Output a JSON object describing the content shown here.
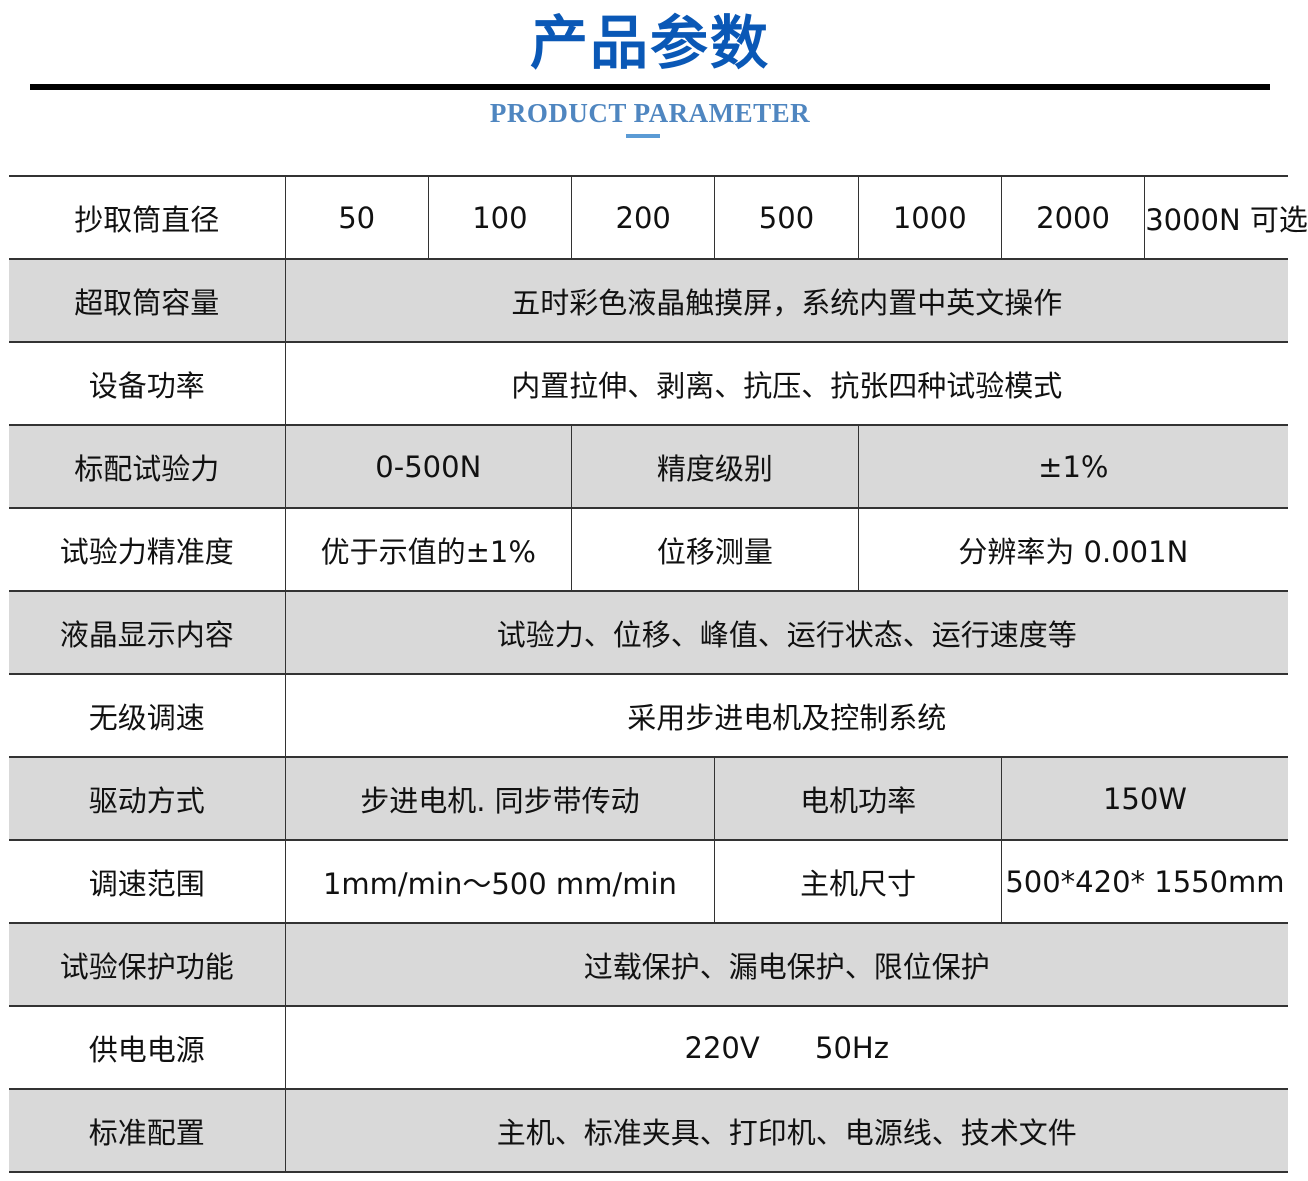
{
  "header": {
    "title": "产品参数",
    "subtitle": "PRODUCT PARAMETER"
  },
  "colors": {
    "title": "#0a58b6",
    "subtitle": "#4f86c0",
    "row_shade": "#d9d9d9"
  },
  "rows": [
    {
      "label": "抄取筒直径",
      "cells": [
        "50",
        "100",
        "200",
        "500",
        "1000",
        "2000",
        "3000N 可选"
      ]
    },
    {
      "label": "超取筒容量",
      "cells": [
        "五时彩色液晶触摸屏，系统内置中英文操作"
      ]
    },
    {
      "label": "设备功率",
      "cells": [
        "内置拉伸、剥离、抗压、抗张四种试验模式"
      ]
    },
    {
      "label": "标配试验力",
      "cells": [
        "0-500N",
        "精度级别",
        "±1%"
      ]
    },
    {
      "label": "试验力精准度",
      "cells": [
        "优于示值的±1%",
        "位移测量",
        "分辨率为 0.001N"
      ]
    },
    {
      "label": "液晶显示内容",
      "cells": [
        "试验力、位移、峰值、运行状态、运行速度等"
      ]
    },
    {
      "label": "无级调速",
      "cells": [
        "采用步进电机及控制系统"
      ]
    },
    {
      "label": "驱动方式",
      "cells": [
        "步进电机. 同步带传动",
        "电机功率",
        "150W"
      ]
    },
    {
      "label": "调速范围",
      "cells": [
        "1mm/min～500 mm/min",
        "主机尺寸",
        "500*420* 1550mm"
      ]
    },
    {
      "label": "试验保护功能",
      "cells": [
        "过载保护、漏电保护、限位保护"
      ]
    },
    {
      "label": "供电电源",
      "cells": [
        "220V      50Hz"
      ]
    },
    {
      "label": "标准配置",
      "cells": [
        "主机、标准夹具、打印机、电源线、技术文件"
      ]
    }
  ]
}
